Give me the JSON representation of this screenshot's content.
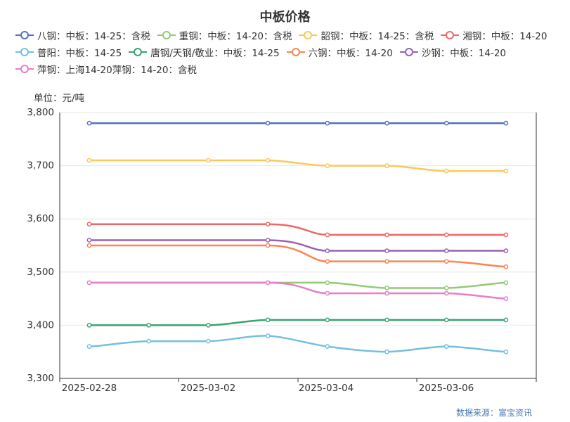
{
  "chart_data": {
    "type": "line",
    "title": "中板价格",
    "ylabel": "单位：元/吨",
    "source": "数据来源：富宝资讯",
    "ylim": [
      3300,
      3800
    ],
    "yticks": [
      "3,300",
      "3,400",
      "3,500",
      "3,600",
      "3,700",
      "3,800"
    ],
    "ytick_values": [
      3300,
      3400,
      3500,
      3600,
      3700,
      3800
    ],
    "x": [
      "2025-02-28",
      "2025-03-01",
      "2025-03-02",
      "2025-03-03",
      "2025-03-04",
      "2025-03-05",
      "2025-03-06",
      "2025-03-07"
    ],
    "xticks": [
      "2025-02-28",
      "2025-03-02",
      "2025-03-04",
      "2025-03-06"
    ],
    "grid": true,
    "legend_position": "top",
    "series": [
      {
        "name": "八钢：中板：14-25：含税",
        "color": "#5470c6",
        "values": [
          3780,
          null,
          null,
          3780,
          3780,
          3780,
          3780,
          3780
        ]
      },
      {
        "name": "重钢：中板：14-20：含税",
        "color": "#91cc75",
        "values": [
          3480,
          null,
          null,
          3480,
          3480,
          3470,
          3470,
          3480
        ]
      },
      {
        "name": "韶钢：中板：14-25：含税",
        "color": "#fac858",
        "values": [
          3710,
          null,
          3710,
          3710,
          3700,
          3700,
          3690,
          3690
        ]
      },
      {
        "name": "湘钢：中板：14-20",
        "color": "#ee6666",
        "values": [
          3590,
          null,
          null,
          3590,
          3570,
          3570,
          3570,
          3570
        ]
      },
      {
        "name": "普阳：中板：14-25",
        "color": "#73c0de",
        "values": [
          3360,
          3370,
          3370,
          3380,
          3360,
          3350,
          3360,
          3350
        ]
      },
      {
        "name": "唐钢/天钢/敬业：中板：14-25",
        "color": "#3ba272",
        "values": [
          3400,
          3400,
          3400,
          3410,
          3410,
          3410,
          3410,
          3410
        ]
      },
      {
        "name": "六钢：中板：14-20",
        "color": "#fc8452",
        "values": [
          3550,
          null,
          null,
          3550,
          3520,
          3520,
          3520,
          3510
        ]
      },
      {
        "name": "沙钢：中板：14-20",
        "color": "#9a60b4",
        "values": [
          3560,
          null,
          null,
          3560,
          3540,
          3540,
          3540,
          3540
        ]
      },
      {
        "name": "萍钢：上海14-20萍钢：14-20：含税",
        "color": "#ea7ccc",
        "values": [
          3480,
          null,
          null,
          3480,
          3460,
          3460,
          3460,
          3450
        ]
      }
    ]
  }
}
